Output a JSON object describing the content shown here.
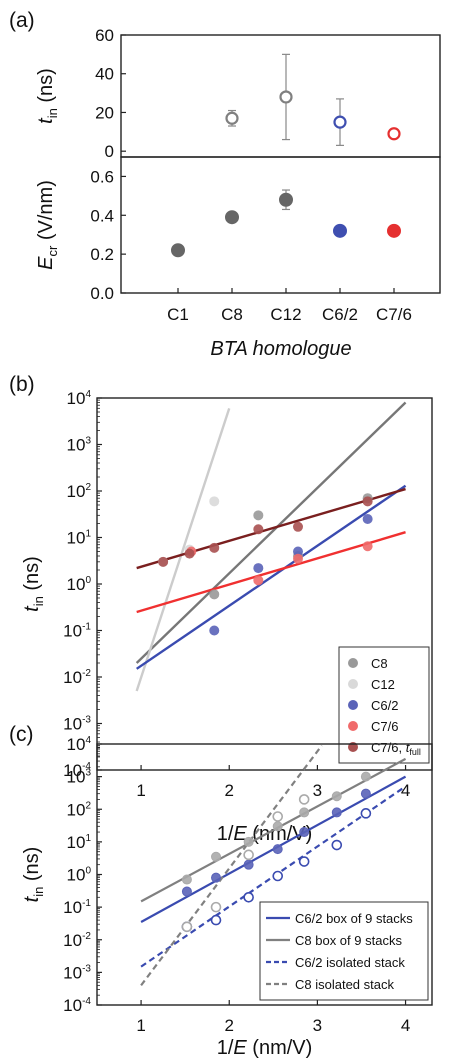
{
  "chart_data": [
    {
      "panel": "(a)",
      "type": "scatter",
      "categories": [
        "C1",
        "C8",
        "C12",
        "C6/2",
        "C7/6"
      ],
      "xlabel": "BTA homologue",
      "subplots": [
        {
          "ylabel_main": "t",
          "ylabel_sub": "in",
          "ylabel_unit": " (ns)",
          "ylim": [
            -3,
            60
          ],
          "yticks": [
            "0",
            "20",
            "40",
            "60"
          ],
          "marker": "open",
          "points": [
            {
              "cat": "C8",
              "y": 17,
              "err": 4,
              "color": "#808080"
            },
            {
              "cat": "C12",
              "y": 28,
              "err": 22,
              "color": "#808080"
            },
            {
              "cat": "C6/2",
              "y": 15,
              "err": 12,
              "color": "#3f4fb0"
            },
            {
              "cat": "C7/6",
              "y": 9,
              "err": 0,
              "color": "#e53030"
            }
          ]
        },
        {
          "ylabel_main": "E",
          "ylabel_sub": "cr",
          "ylabel_unit": " (V/nm)",
          "ylim": [
            0,
            0.7
          ],
          "yticks": [
            "0.0",
            "0.2",
            "0.4",
            "0.6"
          ],
          "marker": "filled",
          "points": [
            {
              "cat": "C1",
              "y": 0.22,
              "err": 0,
              "color": "#666666"
            },
            {
              "cat": "C8",
              "y": 0.39,
              "err": 0,
              "color": "#666666"
            },
            {
              "cat": "C12",
              "y": 0.48,
              "err": 0.05,
              "color": "#666666"
            },
            {
              "cat": "C6/2",
              "y": 0.32,
              "err": 0,
              "color": "#3f4fb0"
            },
            {
              "cat": "C7/6",
              "y": 0.32,
              "err": 0,
              "color": "#e53030"
            }
          ]
        }
      ]
    },
    {
      "panel": "(b)",
      "type": "scatter",
      "xlabel_pre": "1/",
      "xlabel_it": "E",
      "xlabel_post": " (nm/V)",
      "ylabel_main": "t",
      "ylabel_sub": "in",
      "ylabel_unit": " (ns)",
      "xlim": [
        0.5,
        4.3
      ],
      "xticks": [
        "1",
        "2",
        "3",
        "4"
      ],
      "ylog": true,
      "ylim_exp": [
        -4,
        4
      ],
      "legend_position": "lower-right",
      "series": [
        {
          "name": "C8",
          "color": "#999999",
          "points": [
            [
              1.83,
              0.6
            ],
            [
              2.33,
              30
            ],
            [
              2.78,
              4
            ],
            [
              3.57,
              70
            ]
          ],
          "fit": [
            [
              0.95,
              0.02
            ],
            [
              4.0,
              8000
            ]
          ],
          "fit_color": "#777777"
        },
        {
          "name": "C12",
          "color": "#d9d9d9",
          "points": [
            [
              1.25,
              3
            ],
            [
              1.55,
              5.5
            ],
            [
              1.83,
              60
            ]
          ],
          "fit": [
            [
              0.95,
              0.005
            ],
            [
              2.0,
              6000
            ]
          ],
          "fit_color": "#cccccc"
        },
        {
          "name": "C6/2",
          "color": "#5a63b8",
          "points": [
            [
              1.83,
              0.1
            ],
            [
              2.33,
              2.2
            ],
            [
              2.78,
              5
            ],
            [
              3.57,
              25
            ]
          ],
          "fit": [
            [
              0.95,
              0.015
            ],
            [
              4.0,
              130
            ]
          ],
          "fit_color": "#3a4bb0"
        },
        {
          "name": "C7/6",
          "color": "#f06a6a",
          "points": [
            [
              1.57,
              5
            ],
            [
              2.33,
              1.2
            ],
            [
              2.78,
              3.5
            ],
            [
              3.57,
              6.5
            ]
          ],
          "fit": [
            [
              0.95,
              0.25
            ],
            [
              4.0,
              13
            ]
          ],
          "fit_color": "#f03030"
        },
        {
          "name": "C7/6, ",
          "name_sub": "full",
          "color": "#a85050",
          "points": [
            [
              1.25,
              3
            ],
            [
              1.55,
              4.5
            ],
            [
              1.83,
              6
            ],
            [
              2.33,
              15
            ],
            [
              2.78,
              17
            ],
            [
              3.57,
              60
            ]
          ],
          "fit": [
            [
              0.95,
              2.2
            ],
            [
              4.0,
              110
            ]
          ],
          "fit_color": "#7a1f1f"
        }
      ]
    },
    {
      "panel": "(c)",
      "type": "scatter",
      "xlabel_pre": "1/",
      "xlabel_it": "E",
      "xlabel_post": " (nm/V)",
      "ylabel_main": "t",
      "ylabel_sub": "in",
      "ylabel_unit": " (ns)",
      "xlim": [
        0.5,
        4.3
      ],
      "xticks": [
        "1",
        "2",
        "3",
        "4"
      ],
      "ylog": true,
      "ylim_exp": [
        -4,
        4
      ],
      "legend_position": "lower-right",
      "lines": [
        {
          "name": "C6/2 box of 9 stacks",
          "color": "#3a4bb0",
          "dash": false,
          "fit": [
            [
              1.0,
              0.035
            ],
            [
              4.0,
              1000
            ]
          ]
        },
        {
          "name": "C8 box of 9 stacks",
          "color": "#808080",
          "dash": false,
          "fit": [
            [
              1.0,
              0.15
            ],
            [
              4.0,
              3500
            ]
          ]
        },
        {
          "name": "C6/2 isolated stack",
          "color": "#3a4bb0",
          "dash": true,
          "fit": [
            [
              1.0,
              0.0015
            ],
            [
              4.0,
              500
            ]
          ]
        },
        {
          "name": "C8 isolated stack",
          "color": "#808080",
          "dash": true,
          "fit": [
            [
              1.0,
              0.0004
            ],
            [
              3.05,
              9000
            ]
          ]
        }
      ],
      "markers": [
        {
          "color": "#5a63b8",
          "fill": true,
          "points": [
            [
              1.52,
              0.3
            ],
            [
              1.85,
              0.8
            ],
            [
              2.22,
              2
            ],
            [
              2.55,
              6
            ],
            [
              2.85,
              20
            ],
            [
              3.22,
              80
            ],
            [
              3.55,
              300
            ]
          ]
        },
        {
          "color": "#aaaaaa",
          "fill": true,
          "points": [
            [
              1.52,
              0.7
            ],
            [
              1.85,
              3.5
            ],
            [
              2.22,
              10
            ],
            [
              2.55,
              30
            ],
            [
              2.85,
              80
            ],
            [
              3.22,
              250
            ],
            [
              3.55,
              1000
            ]
          ]
        },
        {
          "color": "#3a4bb0",
          "fill": false,
          "points": [
            [
              1.52,
              0.025
            ],
            [
              1.85,
              0.04
            ],
            [
              2.22,
              0.2
            ],
            [
              2.55,
              0.9
            ],
            [
              2.85,
              2.5
            ],
            [
              3.22,
              8
            ],
            [
              3.55,
              75
            ]
          ]
        },
        {
          "color": "#aaaaaa",
          "fill": false,
          "points": [
            [
              1.52,
              0.025
            ],
            [
              1.85,
              0.1
            ],
            [
              2.22,
              4
            ],
            [
              2.55,
              60
            ],
            [
              2.85,
              200
            ]
          ]
        }
      ]
    }
  ]
}
